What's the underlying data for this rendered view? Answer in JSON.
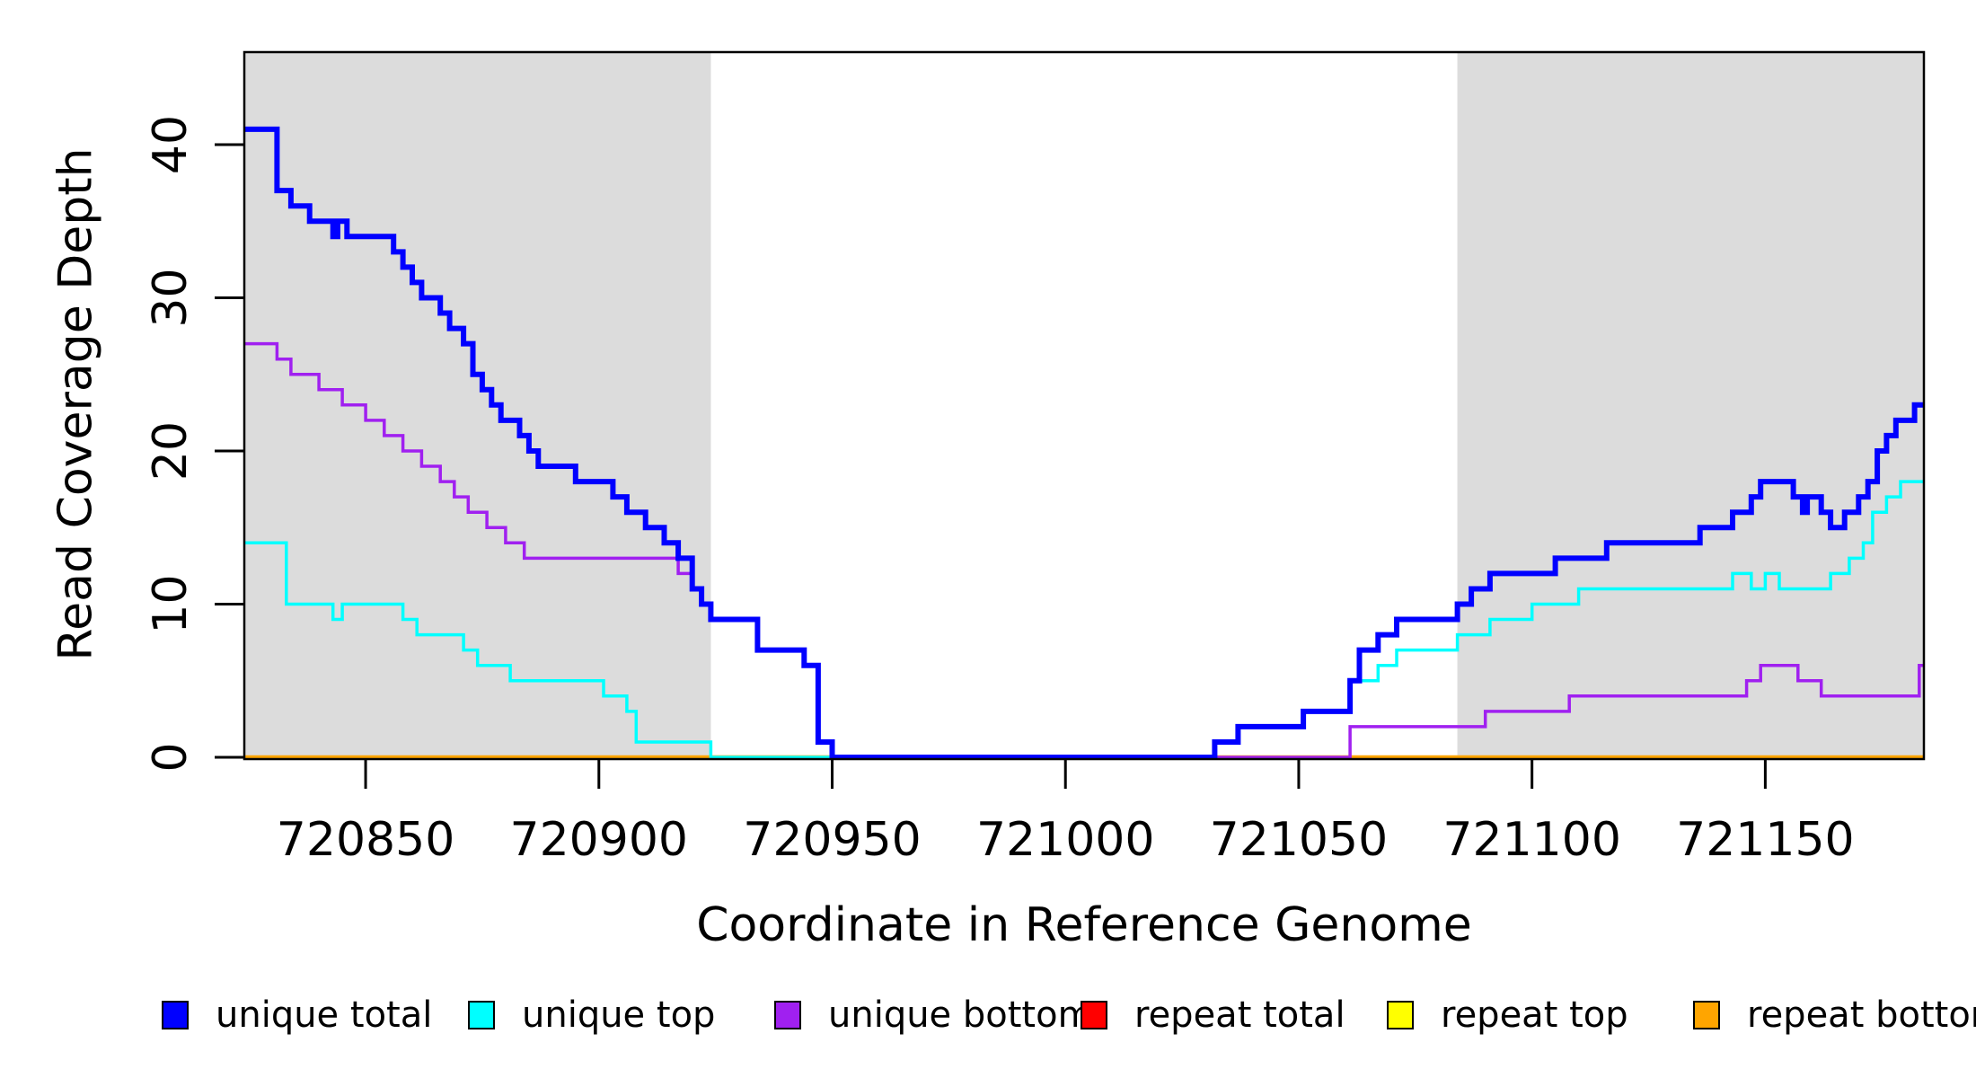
{
  "y_axis": {
    "title": "Read Coverage Depth",
    "ticks": [
      "0",
      "10",
      "20",
      "30",
      "40"
    ]
  },
  "x_axis": {
    "title": "Coordinate in Reference Genome",
    "ticks": [
      "720850",
      "720900",
      "720950",
      "721000",
      "721050",
      "721100",
      "721150"
    ]
  },
  "legend": {
    "items": [
      {
        "label": "unique total",
        "color": "#0000FF"
      },
      {
        "label": "unique top",
        "color": "#00FFFF"
      },
      {
        "label": "unique bottom",
        "color": "#A020F0"
      },
      {
        "label": "repeat total",
        "color": "#FF0000"
      },
      {
        "label": "repeat top",
        "color": "#FFFF00"
      },
      {
        "label": "repeat bottom",
        "color": "#FFA500"
      }
    ]
  },
  "chart_data": {
    "type": "line",
    "subtype": "step",
    "title": "",
    "xlabel": "Coordinate in Reference Genome",
    "ylabel": "Read Coverage Depth",
    "xlim": [
      720824,
      721184
    ],
    "ylim": [
      0,
      46
    ],
    "x_ticks": [
      720850,
      720900,
      720950,
      721000,
      721050,
      721100,
      721150
    ],
    "y_ticks": [
      0,
      10,
      20,
      30,
      40
    ],
    "grid": false,
    "legend_position": "bottom",
    "background": "#FFFFFF",
    "highlight_regions": [
      {
        "x0": 720824,
        "x1": 720924,
        "color": "#DCDCDC"
      },
      {
        "x0": 721084,
        "x1": 721184,
        "color": "#DCDCDC"
      }
    ],
    "series": [
      {
        "name": "repeat total",
        "color": "#FF0000",
        "line_width": 3.5,
        "points": [
          [
            720824,
            0
          ]
        ]
      },
      {
        "name": "repeat top",
        "color": "#FFFF00",
        "line_width": 3.5,
        "points": [
          [
            720824,
            0
          ]
        ]
      },
      {
        "name": "repeat bottom",
        "color": "#FFA500",
        "line_width": 4.5,
        "points": [
          [
            720824,
            0
          ]
        ]
      },
      {
        "name": "unique top",
        "color": "#00FFFF",
        "line_width": 3.5,
        "points": [
          [
            720824,
            14
          ],
          [
            720833,
            10
          ],
          [
            720843,
            9
          ],
          [
            720845,
            10
          ],
          [
            720858,
            9
          ],
          [
            720861,
            8
          ],
          [
            720871,
            7
          ],
          [
            720874,
            6
          ],
          [
            720881,
            5
          ],
          [
            720901,
            4
          ],
          [
            720906,
            3
          ],
          [
            720908,
            1
          ],
          [
            720924,
            0
          ],
          [
            721032,
            1
          ],
          [
            721037,
            2
          ],
          [
            721051,
            3
          ],
          [
            721061,
            5
          ],
          [
            721067,
            6
          ],
          [
            721071,
            7
          ],
          [
            721084,
            8
          ],
          [
            721091,
            9
          ],
          [
            721100,
            10
          ],
          [
            721110,
            11
          ],
          [
            721143,
            12
          ],
          [
            721147,
            11
          ],
          [
            721150,
            12
          ],
          [
            721153,
            11
          ],
          [
            721164,
            12
          ],
          [
            721168,
            13
          ],
          [
            721171,
            14
          ],
          [
            721173,
            16
          ],
          [
            721176,
            17
          ],
          [
            721179,
            18
          ]
        ]
      },
      {
        "name": "unique bottom",
        "color": "#A020F0",
        "line_width": 3.5,
        "points": [
          [
            720824,
            27
          ],
          [
            720831,
            26
          ],
          [
            720834,
            25
          ],
          [
            720840,
            24
          ],
          [
            720845,
            23
          ],
          [
            720850,
            22
          ],
          [
            720854,
            21
          ],
          [
            720858,
            20
          ],
          [
            720862,
            19
          ],
          [
            720866,
            18
          ],
          [
            720869,
            17
          ],
          [
            720872,
            16
          ],
          [
            720876,
            15
          ],
          [
            720880,
            14
          ],
          [
            720884,
            13
          ],
          [
            720917,
            12
          ],
          [
            720920,
            11
          ],
          [
            720922,
            10
          ],
          [
            720924,
            9
          ],
          [
            720934,
            7
          ],
          [
            720944,
            6
          ],
          [
            720947,
            1
          ],
          [
            720950,
            0
          ],
          [
            721061,
            2
          ],
          [
            721090,
            3
          ],
          [
            721108,
            4
          ],
          [
            721146,
            5
          ],
          [
            721149,
            6
          ],
          [
            721157,
            5
          ],
          [
            721162,
            4
          ],
          [
            721183,
            6
          ]
        ]
      },
      {
        "name": "unique total",
        "color": "#0000FF",
        "line_width": 6,
        "points": [
          [
            720824,
            41
          ],
          [
            720831,
            37
          ],
          [
            720834,
            36
          ],
          [
            720838,
            35
          ],
          [
            720843,
            34
          ],
          [
            720844,
            35
          ],
          [
            720846,
            34
          ],
          [
            720856,
            33
          ],
          [
            720858,
            32
          ],
          [
            720860,
            31
          ],
          [
            720862,
            30
          ],
          [
            720866,
            29
          ],
          [
            720868,
            28
          ],
          [
            720871,
            27
          ],
          [
            720873,
            25
          ],
          [
            720875,
            24
          ],
          [
            720877,
            23
          ],
          [
            720879,
            22
          ],
          [
            720883,
            21
          ],
          [
            720885,
            20
          ],
          [
            720887,
            19
          ],
          [
            720895,
            18
          ],
          [
            720903,
            17
          ],
          [
            720906,
            16
          ],
          [
            720910,
            15
          ],
          [
            720914,
            14
          ],
          [
            720917,
            13
          ],
          [
            720920,
            11
          ],
          [
            720922,
            10
          ],
          [
            720924,
            9
          ],
          [
            720934,
            7
          ],
          [
            720944,
            6
          ],
          [
            720947,
            1
          ],
          [
            720950,
            0
          ],
          [
            721032,
            1
          ],
          [
            721037,
            2
          ],
          [
            721051,
            3
          ],
          [
            721061,
            5
          ],
          [
            721063,
            7
          ],
          [
            721067,
            8
          ],
          [
            721071,
            9
          ],
          [
            721084,
            10
          ],
          [
            721087,
            11
          ],
          [
            721091,
            12
          ],
          [
            721105,
            13
          ],
          [
            721116,
            14
          ],
          [
            721136,
            15
          ],
          [
            721143,
            16
          ],
          [
            721147,
            17
          ],
          [
            721149,
            18
          ],
          [
            721156,
            17
          ],
          [
            721158,
            16
          ],
          [
            721159,
            17
          ],
          [
            721162,
            16
          ],
          [
            721164,
            15
          ],
          [
            721167,
            16
          ],
          [
            721170,
            17
          ],
          [
            721172,
            18
          ],
          [
            721174,
            20
          ],
          [
            721176,
            21
          ],
          [
            721178,
            22
          ],
          [
            721182,
            23
          ]
        ]
      }
    ]
  }
}
